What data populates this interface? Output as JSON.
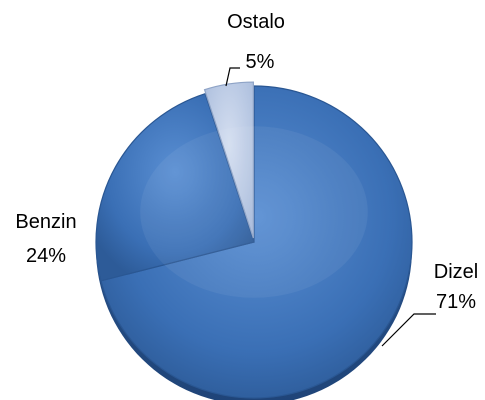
{
  "chart_data": {
    "type": "pie",
    "title": "",
    "slices": [
      {
        "label": "Dizel",
        "value": 71,
        "display": "71%"
      },
      {
        "label": "Benzin",
        "value": 24,
        "display": "24%"
      },
      {
        "label": "Ostalo",
        "value": 5,
        "display": "5%"
      }
    ],
    "colors": [
      "#3a6fb5",
      "#3a6fb5",
      "#b8c8e3"
    ],
    "legend": "none",
    "labels": "outside-with-leaders"
  }
}
